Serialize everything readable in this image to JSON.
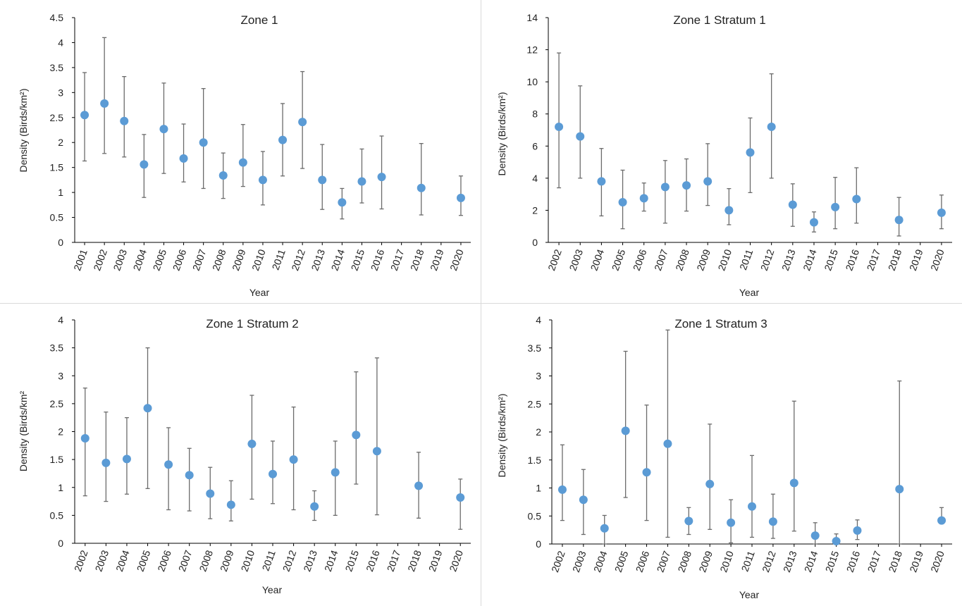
{
  "colors": {
    "marker": "#5B9BD5",
    "error_bar": "#6b6b6b",
    "axis": "#000000",
    "divider": "#d9d9d9"
  },
  "chart_data": [
    {
      "type": "scatter",
      "title": "Zone 1",
      "xlabel": "Year",
      "ylabel": "Density (Birds/km²)",
      "ylim": [
        0,
        4.5
      ],
      "yticks": [
        0,
        0.5,
        1,
        1.5,
        2,
        2.5,
        3,
        3.5,
        4,
        4.5
      ],
      "ytick_labels": [
        "0",
        "0.5",
        "1",
        "1.5",
        "2",
        "2.5",
        "3",
        "3.5",
        "4",
        "4.5"
      ],
      "categories": [
        "2001",
        "2002",
        "2003",
        "2004",
        "2005",
        "2006",
        "2007",
        "2008",
        "2009",
        "2010",
        "2011",
        "2012",
        "2013",
        "2014",
        "2015",
        "2016",
        "2017",
        "2018",
        "2019",
        "2020"
      ],
      "values": [
        2.55,
        2.78,
        2.43,
        1.56,
        2.27,
        1.68,
        2.0,
        1.34,
        1.6,
        1.25,
        2.05,
        2.41,
        1.25,
        0.8,
        1.22,
        1.31,
        null,
        1.09,
        null,
        0.89
      ],
      "lower": [
        1.63,
        1.78,
        1.71,
        0.9,
        1.38,
        1.21,
        1.08,
        0.88,
        1.12,
        0.75,
        1.33,
        1.48,
        0.66,
        0.47,
        0.79,
        0.67,
        null,
        0.55,
        null,
        0.54
      ],
      "upper": [
        3.4,
        4.1,
        3.32,
        2.16,
        3.19,
        2.37,
        3.08,
        1.79,
        2.36,
        1.82,
        2.78,
        3.42,
        1.96,
        1.08,
        1.87,
        2.13,
        null,
        1.98,
        null,
        1.33
      ],
      "grid": false,
      "legend": "none"
    },
    {
      "type": "scatter",
      "title": "Zone 1 Stratum 1",
      "xlabel": "Year",
      "ylabel": "Density (Birds/km²)",
      "ylim": [
        0,
        14
      ],
      "yticks": [
        0,
        2,
        4,
        6,
        8,
        10,
        12,
        14
      ],
      "ytick_labels": [
        "0",
        "2",
        "4",
        "6",
        "8",
        "10",
        "12",
        "14"
      ],
      "categories": [
        "2002",
        "2003",
        "2004",
        "2005",
        "2006",
        "2007",
        "2008",
        "2009",
        "2010",
        "2011",
        "2012",
        "2013",
        "2014",
        "2015",
        "2016",
        "2017",
        "2018",
        "2019",
        "2020"
      ],
      "values": [
        7.2,
        6.6,
        3.8,
        2.5,
        2.75,
        3.45,
        3.55,
        3.8,
        2.0,
        5.6,
        7.2,
        2.35,
        1.25,
        2.2,
        2.7,
        null,
        1.4,
        null,
        1.85
      ],
      "lower": [
        3.4,
        4.0,
        1.65,
        0.85,
        1.95,
        1.2,
        1.95,
        2.3,
        1.1,
        3.1,
        4.0,
        1.0,
        0.65,
        0.85,
        1.2,
        null,
        0.4,
        null,
        0.85
      ],
      "upper": [
        11.8,
        9.75,
        5.85,
        4.5,
        3.7,
        5.1,
        5.2,
        6.15,
        3.35,
        7.75,
        10.5,
        3.65,
        1.9,
        4.05,
        4.65,
        null,
        2.8,
        null,
        2.95
      ],
      "grid": false,
      "legend": "none"
    },
    {
      "type": "scatter",
      "title": "Zone 1 Stratum 2",
      "xlabel": "Year",
      "ylabel": "Density (Birds/km²",
      "ylim": [
        0,
        4
      ],
      "yticks": [
        0,
        0.5,
        1,
        1.5,
        2,
        2.5,
        3,
        3.5,
        4
      ],
      "ytick_labels": [
        "0",
        "0.5",
        "1",
        "1.5",
        "2",
        "2.5",
        "3",
        "3.5",
        "4"
      ],
      "categories": [
        "2002",
        "2003",
        "2004",
        "2005",
        "2006",
        "2007",
        "2008",
        "2009",
        "2010",
        "2011",
        "2012",
        "2013",
        "2014",
        "2015",
        "2016",
        "2017",
        "2018",
        "2019",
        "2020"
      ],
      "values": [
        1.88,
        1.44,
        1.51,
        2.42,
        1.41,
        1.22,
        0.89,
        0.69,
        1.78,
        1.24,
        1.5,
        0.66,
        1.27,
        1.94,
        1.65,
        null,
        1.03,
        null,
        0.82
      ],
      "lower": [
        0.85,
        0.75,
        0.88,
        0.98,
        0.6,
        0.58,
        0.44,
        0.4,
        0.79,
        0.71,
        0.6,
        0.41,
        0.5,
        1.06,
        0.51,
        null,
        0.45,
        null,
        0.25
      ],
      "upper": [
        2.78,
        2.35,
        2.25,
        3.5,
        2.07,
        1.7,
        1.36,
        1.12,
        2.65,
        1.83,
        2.44,
        0.94,
        1.83,
        3.07,
        3.32,
        null,
        1.63,
        null,
        1.15
      ],
      "grid": false,
      "legend": "none"
    },
    {
      "type": "scatter",
      "title": "Zone 1 Stratum 3",
      "xlabel": "Year",
      "ylabel": "Density (Birds/km²)",
      "ylim": [
        0,
        4
      ],
      "yticks": [
        0,
        0.5,
        1,
        1.5,
        2,
        2.5,
        3,
        3.5,
        4
      ],
      "ytick_labels": [
        "0",
        "0.5",
        "1",
        "1.5",
        "2",
        "2.5",
        "3",
        "3.5",
        "4"
      ],
      "categories": [
        "2002",
        "2003",
        "2004",
        "2005",
        "2006",
        "2007",
        "2008",
        "2009",
        "2010",
        "2011",
        "2012",
        "2013",
        "2014",
        "2015",
        "2016",
        "2017",
        "2018",
        "2019",
        "2020"
      ],
      "values": [
        0.97,
        0.79,
        0.28,
        2.02,
        1.28,
        1.79,
        0.41,
        1.07,
        0.38,
        0.67,
        0.4,
        1.09,
        0.15,
        0.05,
        0.24,
        null,
        0.98,
        null,
        0.42
      ],
      "lower": [
        0.42,
        0.17,
        0.0,
        0.83,
        0.42,
        0.12,
        0.17,
        0.26,
        0.02,
        0.12,
        0.1,
        0.23,
        0.0,
        0.0,
        0.08,
        null,
        0.0,
        null,
        0.36
      ],
      "upper": [
        1.77,
        1.33,
        0.51,
        3.44,
        2.48,
        3.82,
        0.65,
        2.14,
        0.79,
        1.58,
        0.89,
        2.55,
        0.38,
        0.18,
        0.43,
        null,
        2.91,
        null,
        0.65
      ],
      "grid": false,
      "legend": "none"
    }
  ]
}
